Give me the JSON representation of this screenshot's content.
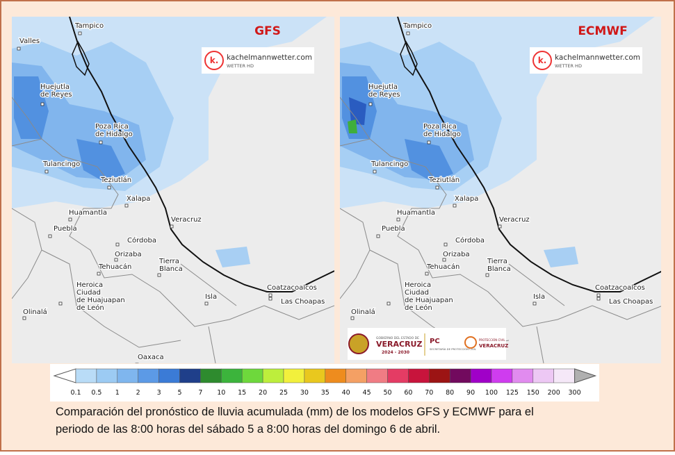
{
  "panels": [
    {
      "model": "GFS",
      "brand": {
        "name": "kachelmannwetter.com",
        "sub": "WETTER HD",
        "icon": "k."
      },
      "cities": [
        {
          "lines": [
            "Tampico"
          ]
        },
        {
          "lines": [
            "Huejutla",
            "de Reyes"
          ]
        },
        {
          "lines": [
            "Poza Rica",
            "de Hidalgo"
          ]
        },
        {
          "lines": [
            "Tulancingo"
          ]
        },
        {
          "lines": [
            "Teziutlán"
          ]
        },
        {
          "lines": [
            "Xalapa"
          ]
        },
        {
          "lines": [
            "Huamantla"
          ]
        },
        {
          "lines": [
            "Veracruz"
          ]
        },
        {
          "lines": [
            "Puebla"
          ]
        },
        {
          "lines": [
            "Córdoba"
          ]
        },
        {
          "lines": [
            "Orizaba"
          ]
        },
        {
          "lines": [
            "Tehuacán"
          ]
        },
        {
          "lines": [
            "Tierra",
            "Blanca"
          ]
        },
        {
          "lines": [
            "Heroica",
            "Ciudad",
            "de Huajuapan",
            "de León"
          ]
        },
        {
          "lines": [
            "Coatzacoalcos"
          ]
        },
        {
          "lines": [
            "Isla"
          ]
        },
        {
          "lines": [
            "Las Choapas"
          ]
        },
        {
          "lines": [
            "Olinalá"
          ]
        },
        {
          "lines": [
            "Oaxaca"
          ]
        },
        {
          "lines": [
            "Valles"
          ]
        }
      ]
    },
    {
      "model": "ECMWF",
      "brand": {
        "name": "kachelmannwetter.com",
        "sub": "WETTER HD",
        "icon": "k."
      },
      "cities": [
        {
          "lines": [
            "Tampico"
          ]
        },
        {
          "lines": [
            "Huejutla",
            "de Reyes"
          ]
        },
        {
          "lines": [
            "Poza Rica",
            "de Hidalgo"
          ]
        },
        {
          "lines": [
            "Tulancingo"
          ]
        },
        {
          "lines": [
            "Teziutlán"
          ]
        },
        {
          "lines": [
            "Xalapa"
          ]
        },
        {
          "lines": [
            "Huamantla"
          ]
        },
        {
          "lines": [
            "Veracruz"
          ]
        },
        {
          "lines": [
            "Puebla"
          ]
        },
        {
          "lines": [
            "Córdoba"
          ]
        },
        {
          "lines": [
            "Orizaba"
          ]
        },
        {
          "lines": [
            "Tehuacán"
          ]
        },
        {
          "lines": [
            "Tierra",
            "Blanca"
          ]
        },
        {
          "lines": [
            "Heroica",
            "Ciudad",
            "de Huajuapan",
            "de León"
          ]
        },
        {
          "lines": [
            "Coatzacoalcos"
          ]
        },
        {
          "lines": [
            "Isla"
          ]
        },
        {
          "lines": [
            "Las Choapas"
          ]
        },
        {
          "lines": [
            "Olinalá"
          ]
        }
      ]
    }
  ],
  "logo": {
    "line1": "GOBIERNO DEL ESTADO DE",
    "line2": "VERACRUZ",
    "line3": "2024 - 2030",
    "pc": "PC",
    "pc_sub": "SECRETARÍA DE PROTECCIÓN CIVIL",
    "right1": "PROTECCIÓN CIVIL",
    "right2": "VERACRUZ"
  },
  "legend": {
    "labels": [
      "0.1",
      "0.5",
      "1",
      "2",
      "3",
      "5",
      "7",
      "10",
      "15",
      "20",
      "25",
      "30",
      "35",
      "40",
      "45",
      "50",
      "60",
      "70",
      "80",
      "90",
      "100",
      "125",
      "150",
      "200",
      "300"
    ],
    "colors": [
      "#b9dcf7",
      "#9ccbf3",
      "#7fb6ee",
      "#5c9ae6",
      "#3b7bd6",
      "#1f3f8a",
      "#2e8b2e",
      "#3cb43c",
      "#6ed83c",
      "#bdee3c",
      "#f2f03c",
      "#e9c81e",
      "#ee8c1e",
      "#f4a064",
      "#f07c84",
      "#e43c64",
      "#c8143c",
      "#9c1414",
      "#720a5e",
      "#a000c8",
      "#cf3cef",
      "#e18bef",
      "#edc8f4",
      "#f5e8f8"
    ],
    "below": "#ffffff",
    "above": "#b0b0b0"
  },
  "caption": [
    "Comparación del pronóstico de lluvia acumulada (mm) de los modelos GFS y ECMWF para el",
    "periodo de las 8:00 horas del sábado 5 a 8:00 horas del domingo 6 de abril."
  ]
}
